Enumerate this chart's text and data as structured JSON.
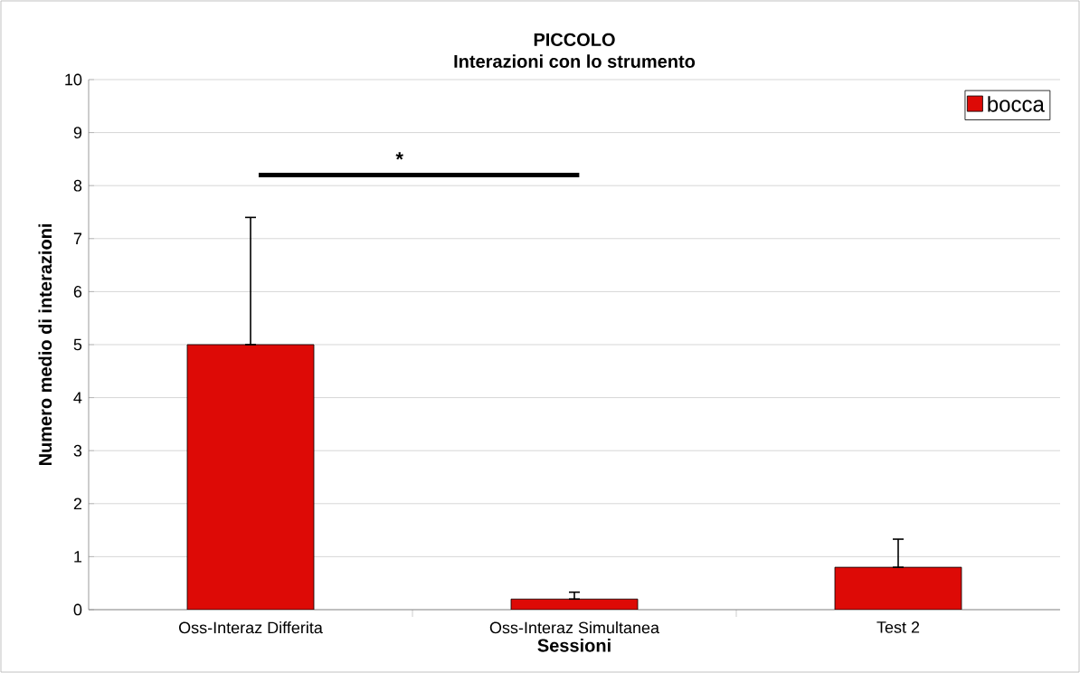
{
  "chart_data": {
    "type": "bar",
    "title": "PICCOLO",
    "subtitle": "Interazioni con lo strumento",
    "xlabel": "Sessioni",
    "ylabel": "Numero medio di interazioni",
    "categories": [
      "Oss-Interaz Differita",
      "Oss-Interaz Simultanea",
      "Test 2"
    ],
    "series": [
      {
        "name": "bocca",
        "color": "#dd0a06",
        "values": [
          5,
          0.2,
          0.8
        ],
        "errors": [
          [
            5,
            7.4
          ],
          [
            0.2,
            0.33
          ],
          [
            0.8,
            1.33
          ]
        ]
      }
    ],
    "ylim": [
      0,
      10
    ],
    "yticks": [
      0,
      1,
      2,
      3,
      4,
      5,
      6,
      7,
      8,
      9,
      10
    ],
    "grid": "y",
    "legend": "top right",
    "annotations": [
      "*"
    ]
  }
}
